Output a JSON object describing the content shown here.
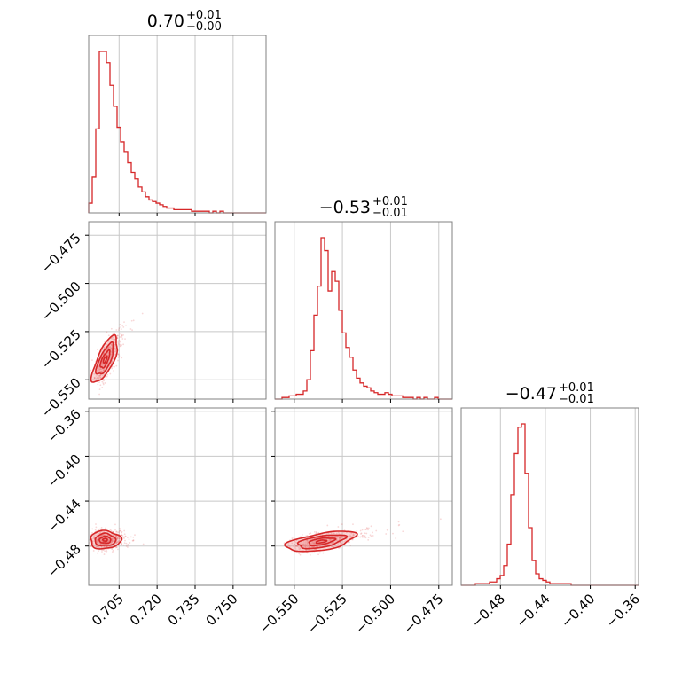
{
  "colors": {
    "accent": "#d62728",
    "fill": "#ef8a8a",
    "grid": "#c8c8c8",
    "frame": "#808080"
  },
  "chart_data": {
    "type": "scatter",
    "parameters": [
      {
        "id": "p0",
        "title_value": "0.70",
        "title_plus": "+0.01",
        "title_minus": "−0.00",
        "range": [
          0.693,
          0.763
        ],
        "ticks": [
          0.705,
          0.72,
          0.735,
          0.75
        ],
        "tick_labels": [
          "0.705",
          "0.720",
          "0.735",
          "0.750"
        ]
      },
      {
        "id": "p1",
        "title_value": "−0.53",
        "title_plus": "+0.01",
        "title_minus": "−0.01",
        "range": [
          -0.56,
          -0.468
        ],
        "ticks": [
          -0.55,
          -0.525,
          -0.5,
          -0.475
        ],
        "tick_labels": [
          "−0.550",
          "−0.525",
          "−0.500",
          "−0.475"
        ]
      },
      {
        "id": "p2",
        "title_value": "−0.47",
        "title_plus": "+0.01",
        "title_minus": "−0.01",
        "range": [
          -0.515,
          -0.357
        ],
        "ticks": [
          -0.48,
          -0.44,
          -0.4,
          -0.36
        ],
        "tick_labels": [
          "−0.48",
          "−0.44",
          "−0.40",
          "−0.36"
        ]
      }
    ],
    "histograms": [
      {
        "param": 0,
        "counts": [
          6,
          22,
          52,
          100,
          100,
          93,
          79,
          66,
          53,
          44,
          38,
          31,
          25,
          21,
          16,
          13,
          10,
          8,
          7,
          6,
          5,
          4,
          3,
          3,
          2,
          2,
          2,
          2,
          2,
          1,
          1,
          1,
          1,
          1,
          0,
          1,
          0,
          1,
          0,
          0,
          0,
          0,
          0,
          0,
          0,
          0,
          0,
          0,
          0,
          0
        ]
      },
      {
        "param": 1,
        "counts": [
          0,
          0,
          1,
          1,
          2,
          2,
          3,
          3,
          5,
          12,
          30,
          52,
          70,
          100,
          92,
          67,
          79,
          73,
          55,
          41,
          32,
          26,
          18,
          13,
          10,
          8,
          7,
          5,
          4,
          3,
          3,
          4,
          3,
          2,
          2,
          2,
          1,
          1,
          1,
          0,
          1,
          0,
          1,
          0,
          0,
          1,
          0,
          0,
          0,
          0
        ]
      },
      {
        "param": 2,
        "counts": [
          0,
          0,
          0,
          0,
          1,
          1,
          1,
          1,
          2,
          2,
          4,
          6,
          12,
          25,
          55,
          80,
          96,
          98,
          68,
          35,
          15,
          7,
          4,
          3,
          2,
          1,
          1,
          1,
          1,
          1,
          1,
          0,
          0,
          0,
          0,
          0,
          0,
          0,
          0,
          0,
          0,
          0,
          0,
          0,
          0,
          0,
          0,
          0,
          0,
          0
        ]
      }
    ],
    "pairs": [
      {
        "x": 0,
        "y": 1,
        "mean": [
          0.6995,
          -0.5395
        ],
        "sd": [
          0.0025,
          0.006
        ],
        "rho": 0.72
      },
      {
        "x": 0,
        "y": 2,
        "mean": [
          0.6995,
          -0.4745
        ],
        "sd": [
          0.003,
          0.004
        ],
        "rho": 0.02
      },
      {
        "x": 1,
        "y": 2,
        "mean": [
          -0.536,
          -0.476
        ],
        "sd": [
          0.009,
          0.0045
        ],
        "rho": 0.55
      }
    ]
  }
}
